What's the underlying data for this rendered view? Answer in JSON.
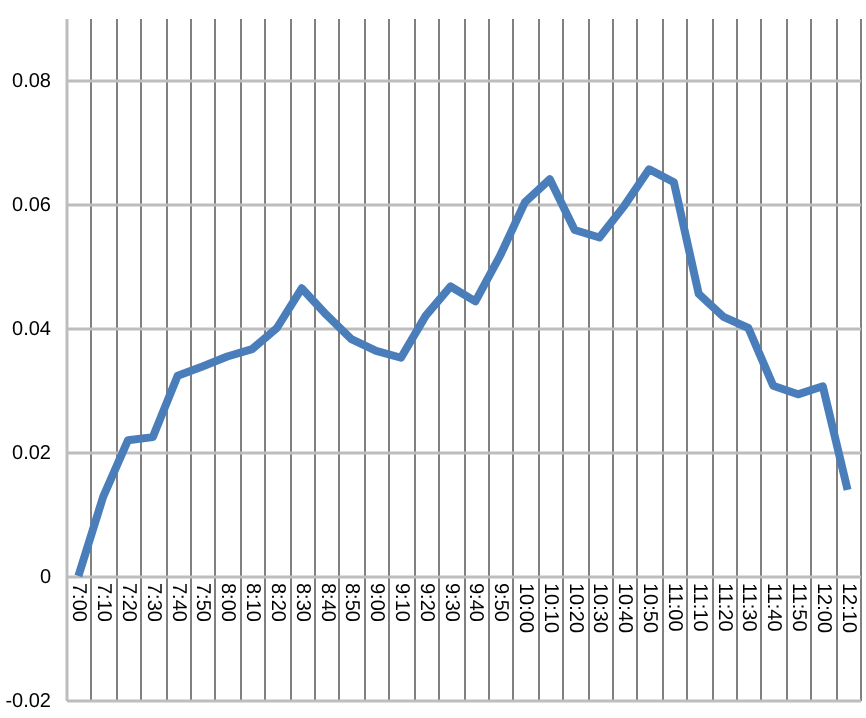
{
  "chart_data": {
    "type": "line",
    "categories": [
      "7:00",
      "7:10",
      "7:20",
      "7:30",
      "7:40",
      "7:50",
      "8:00",
      "8:10",
      "8:20",
      "8:30",
      "8:40",
      "8:50",
      "9:00",
      "9:10",
      "9:20",
      "9:30",
      "9:40",
      "9:50",
      "10:00",
      "10:10",
      "10:20",
      "10:30",
      "10:40",
      "10:50",
      "11:00",
      "11:10",
      "11:20",
      "11:30",
      "11:40",
      "11:50",
      "12:00",
      "12:10"
    ],
    "series": [
      {
        "color": "#4a7ebb",
        "values": [
          0,
          0.0128,
          0.0219,
          0.0224,
          0.0323,
          0.0338,
          0.0354,
          0.0366,
          0.04,
          0.0464,
          0.0421,
          0.0382,
          0.0363,
          0.0352,
          0.042,
          0.0467,
          0.0443,
          0.0517,
          0.0603,
          0.064,
          0.0558,
          0.0546,
          0.0597,
          0.0656,
          0.0635,
          0.0455,
          0.0418,
          0.04,
          0.0307,
          0.0293,
          0.0306,
          0.0139
        ]
      }
    ],
    "ylim": [
      -0.02,
      0.09
    ],
    "yticks": [
      -0.02,
      0,
      0.02,
      0.04,
      0.06,
      0.08
    ],
    "grid": true,
    "marker": "none",
    "line_style": "solid"
  }
}
